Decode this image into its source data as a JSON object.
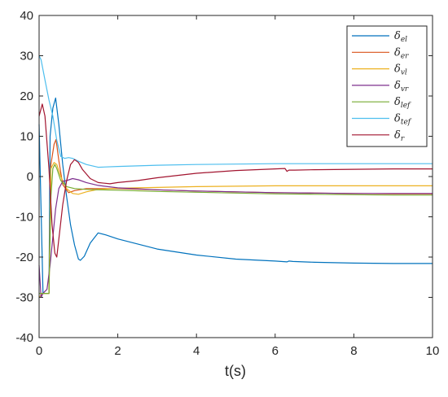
{
  "chart_data": {
    "type": "line",
    "xlabel": "t(s)",
    "ylabel": "",
    "title": "",
    "xlim": [
      0,
      10
    ],
    "ylim": [
      -40,
      40
    ],
    "xticks": [
      "0",
      "2",
      "4",
      "6",
      "8",
      "10"
    ],
    "yticks": [
      "40",
      "30",
      "20",
      "10",
      "0",
      "-10",
      "-20",
      "-30",
      "-40"
    ],
    "grid": false,
    "legend_position": "top-right",
    "series": [
      {
        "name": "δel",
        "symbol": "δ",
        "subscript": "el",
        "color": "#0072BD",
        "points": [
          [
            0,
            13
          ],
          [
            0.1,
            -29
          ],
          [
            0.25,
            -29
          ],
          [
            0.28,
            10
          ],
          [
            0.35,
            17
          ],
          [
            0.42,
            19.5
          ],
          [
            0.5,
            13
          ],
          [
            0.6,
            3
          ],
          [
            0.7,
            -5
          ],
          [
            0.8,
            -12
          ],
          [
            0.9,
            -17
          ],
          [
            1.0,
            -20.5
          ],
          [
            1.05,
            -20.8
          ],
          [
            1.15,
            -19.8
          ],
          [
            1.3,
            -16.5
          ],
          [
            1.5,
            -14
          ],
          [
            1.7,
            -14.5
          ],
          [
            2,
            -15.5
          ],
          [
            3,
            -18
          ],
          [
            4,
            -19.5
          ],
          [
            5,
            -20.5
          ],
          [
            6,
            -21
          ],
          [
            6.3,
            -21.2
          ],
          [
            6.35,
            -21
          ],
          [
            6.45,
            -21.1
          ],
          [
            7,
            -21.3
          ],
          [
            8,
            -21.5
          ],
          [
            9,
            -21.6
          ],
          [
            10,
            -21.6
          ]
        ]
      },
      {
        "name": "δer",
        "symbol": "δ",
        "subscript": "er",
        "color": "#D95319",
        "points": [
          [
            0,
            -30
          ],
          [
            0.1,
            -29
          ],
          [
            0.25,
            -29
          ],
          [
            0.3,
            3
          ],
          [
            0.38,
            8
          ],
          [
            0.43,
            9.2
          ],
          [
            0.5,
            4
          ],
          [
            0.6,
            -2
          ],
          [
            0.75,
            -4
          ],
          [
            0.9,
            -3.5
          ],
          [
            1.2,
            -3
          ],
          [
            1.5,
            -3
          ],
          [
            2,
            -3
          ],
          [
            3,
            -3.3
          ],
          [
            4,
            -3.6
          ],
          [
            5,
            -3.8
          ],
          [
            6,
            -4
          ],
          [
            7,
            -4.1
          ],
          [
            8,
            -4.2
          ],
          [
            9,
            -4.3
          ],
          [
            10,
            -4.3
          ]
        ]
      },
      {
        "name": "δvl",
        "symbol": "δ",
        "subscript": "vl",
        "color": "#EDB120",
        "points": [
          [
            0,
            -30
          ],
          [
            0.1,
            -29
          ],
          [
            0.25,
            -29
          ],
          [
            0.3,
            2
          ],
          [
            0.38,
            3.5
          ],
          [
            0.45,
            3
          ],
          [
            0.55,
            0
          ],
          [
            0.7,
            -3
          ],
          [
            0.85,
            -4.2
          ],
          [
            1.0,
            -4.4
          ],
          [
            1.2,
            -3.8
          ],
          [
            1.5,
            -3.2
          ],
          [
            2,
            -2.9
          ],
          [
            3,
            -2.7
          ],
          [
            4,
            -2.5
          ],
          [
            5,
            -2.4
          ],
          [
            6,
            -2.3
          ],
          [
            7,
            -2.3
          ],
          [
            8,
            -2.3
          ],
          [
            9,
            -2.3
          ],
          [
            10,
            -2.3
          ]
        ]
      },
      {
        "name": "δvr",
        "symbol": "δ",
        "subscript": "vr",
        "color": "#7E2F8E",
        "points": [
          [
            0,
            -22
          ],
          [
            0.05,
            -30
          ],
          [
            0.1,
            -29
          ],
          [
            0.2,
            -28
          ],
          [
            0.28,
            -22
          ],
          [
            0.35,
            -15
          ],
          [
            0.42,
            -8
          ],
          [
            0.5,
            -3
          ],
          [
            0.6,
            -1.2
          ],
          [
            0.7,
            -1
          ],
          [
            0.85,
            -0.5
          ],
          [
            1.0,
            -0.8
          ],
          [
            1.2,
            -1.5
          ],
          [
            1.5,
            -2.2
          ],
          [
            2,
            -2.8
          ],
          [
            3,
            -3.3
          ],
          [
            4,
            -3.6
          ],
          [
            5,
            -3.8
          ],
          [
            6,
            -4
          ],
          [
            7,
            -4.1
          ],
          [
            8,
            -4.2
          ],
          [
            9,
            -4.2
          ],
          [
            10,
            -4.2
          ]
        ]
      },
      {
        "name": "δlef",
        "symbol": "δ",
        "subscript": "lef",
        "color": "#77AC30",
        "points": [
          [
            0,
            -29
          ],
          [
            0.1,
            -29
          ],
          [
            0.25,
            -29
          ],
          [
            0.3,
            -5
          ],
          [
            0.35,
            2
          ],
          [
            0.4,
            3
          ],
          [
            0.45,
            2
          ],
          [
            0.55,
            -1
          ],
          [
            0.7,
            -2.5
          ],
          [
            0.9,
            -3
          ],
          [
            1.2,
            -3.2
          ],
          [
            1.5,
            -3.3
          ],
          [
            2,
            -3.4
          ],
          [
            3,
            -3.7
          ],
          [
            4,
            -3.9
          ],
          [
            5,
            -4.1
          ],
          [
            6,
            -4.3
          ],
          [
            7,
            -4.4
          ],
          [
            8,
            -4.5
          ],
          [
            9,
            -4.6
          ],
          [
            10,
            -4.6
          ]
        ]
      },
      {
        "name": "δtef",
        "symbol": "δ",
        "subscript": "tef",
        "color": "#4DBEEE",
        "points": [
          [
            0,
            30
          ],
          [
            0.05,
            29
          ],
          [
            0.15,
            24
          ],
          [
            0.25,
            19
          ],
          [
            0.35,
            15
          ],
          [
            0.45,
            9
          ],
          [
            0.55,
            5
          ],
          [
            0.65,
            4.5
          ],
          [
            0.75,
            4.7
          ],
          [
            0.85,
            4.5
          ],
          [
            1.0,
            3.8
          ],
          [
            1.2,
            3
          ],
          [
            1.5,
            2.3
          ],
          [
            2,
            2.5
          ],
          [
            3,
            2.8
          ],
          [
            4,
            3
          ],
          [
            5,
            3.1
          ],
          [
            6,
            3.2
          ],
          [
            7,
            3.2
          ],
          [
            8,
            3.2
          ],
          [
            9,
            3.2
          ],
          [
            10,
            3.2
          ]
        ]
      },
      {
        "name": "δr",
        "symbol": "δ",
        "subscript": "r",
        "color": "#A2142F",
        "points": [
          [
            0,
            15
          ],
          [
            0.08,
            18
          ],
          [
            0.15,
            15
          ],
          [
            0.25,
            2
          ],
          [
            0.33,
            -12
          ],
          [
            0.4,
            -19
          ],
          [
            0.45,
            -20
          ],
          [
            0.52,
            -14
          ],
          [
            0.6,
            -7
          ],
          [
            0.7,
            -1
          ],
          [
            0.8,
            3
          ],
          [
            0.9,
            4.2
          ],
          [
            1.0,
            3.5
          ],
          [
            1.1,
            1.8
          ],
          [
            1.3,
            -0.5
          ],
          [
            1.5,
            -1.5
          ],
          [
            1.8,
            -1.8
          ],
          [
            2,
            -1.5
          ],
          [
            2.5,
            -1
          ],
          [
            3,
            -0.3
          ],
          [
            4,
            0.8
          ],
          [
            5,
            1.5
          ],
          [
            6,
            1.9
          ],
          [
            6.25,
            2.0
          ],
          [
            6.3,
            1.3
          ],
          [
            6.35,
            1.6
          ],
          [
            6.5,
            1.6
          ],
          [
            7,
            1.7
          ],
          [
            8,
            1.8
          ],
          [
            9,
            1.9
          ],
          [
            10,
            1.9
          ]
        ]
      }
    ]
  }
}
